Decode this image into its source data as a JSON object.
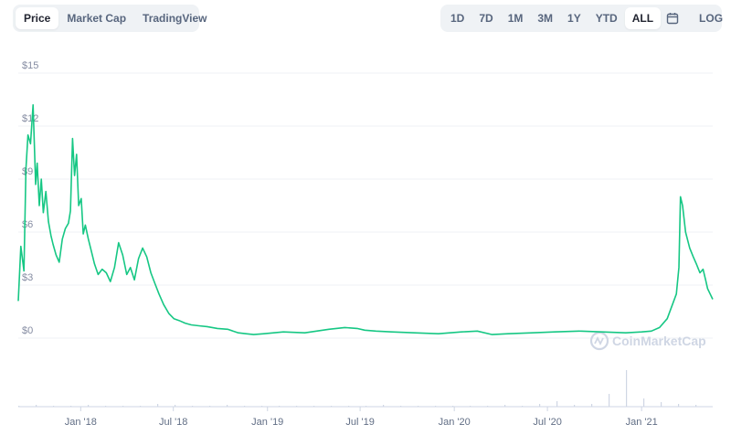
{
  "tabs": {
    "left": [
      {
        "label": "Price",
        "active": true
      },
      {
        "label": "Market Cap",
        "active": false
      },
      {
        "label": "TradingView",
        "active": false
      }
    ],
    "ranges": [
      {
        "label": "1D",
        "active": false
      },
      {
        "label": "7D",
        "active": false
      },
      {
        "label": "1M",
        "active": false
      },
      {
        "label": "3M",
        "active": false
      },
      {
        "label": "1Y",
        "active": false
      },
      {
        "label": "YTD",
        "active": false
      },
      {
        "label": "ALL",
        "active": true
      }
    ],
    "calendar_icon": "calendar-icon",
    "log_label": "LOG"
  },
  "watermark": {
    "text": "CoinMarketCap"
  },
  "colors": {
    "line": "#16c784",
    "grid": "#eff2f5",
    "volume": "#cfd6e4"
  },
  "chart_data": {
    "type": "line",
    "xlabel": "",
    "ylabel": "",
    "ylim": [
      0,
      15
    ],
    "yticks": [
      {
        "value": 0,
        "label": "$0"
      },
      {
        "value": 3,
        "label": "$3"
      },
      {
        "value": 6,
        "label": "$6"
      },
      {
        "value": 9,
        "label": "$9"
      },
      {
        "value": 12,
        "label": "$12"
      },
      {
        "value": 15,
        "label": "$15"
      }
    ],
    "xticks": [
      {
        "date": "2018-01-01",
        "label": "Jan '18"
      },
      {
        "date": "2018-07-01",
        "label": "Jul '18"
      },
      {
        "date": "2019-01-01",
        "label": "Jan '19"
      },
      {
        "date": "2019-07-01",
        "label": "Jul '19"
      },
      {
        "date": "2020-01-01",
        "label": "Jan '20"
      },
      {
        "date": "2020-07-01",
        "label": "Jul '20"
      },
      {
        "date": "2021-01-01",
        "label": "Jan '21"
      }
    ],
    "xlim": [
      "2017-09-01",
      "2021-05-20"
    ],
    "series": [
      {
        "x": [
          "2017-09-01",
          "2017-09-06",
          "2017-09-12",
          "2017-09-16",
          "2017-09-20",
          "2017-09-25",
          "2017-09-30",
          "2017-10-05",
          "2017-10-08",
          "2017-10-12",
          "2017-10-16",
          "2017-10-20",
          "2017-10-25",
          "2017-10-30",
          "2017-11-04",
          "2017-11-08",
          "2017-11-14",
          "2017-11-20",
          "2017-11-26",
          "2017-12-02",
          "2017-12-08",
          "2017-12-12",
          "2017-12-16",
          "2017-12-20",
          "2017-12-24",
          "2017-12-28",
          "2018-01-02",
          "2018-01-06",
          "2018-01-10",
          "2018-01-16",
          "2018-01-22",
          "2018-01-28",
          "2018-02-04",
          "2018-02-12",
          "2018-02-20",
          "2018-02-28",
          "2018-03-08",
          "2018-03-16",
          "2018-03-24",
          "2018-04-01",
          "2018-04-08",
          "2018-04-16",
          "2018-04-24",
          "2018-05-02",
          "2018-05-10",
          "2018-05-18",
          "2018-05-26",
          "2018-06-03",
          "2018-06-12",
          "2018-06-22",
          "2018-07-02",
          "2018-07-12",
          "2018-07-24",
          "2018-08-05",
          "2018-08-20",
          "2018-09-05",
          "2018-09-25",
          "2018-10-15",
          "2018-11-05",
          "2018-11-20",
          "2018-12-05",
          "2018-12-25",
          "2019-02-01",
          "2019-03-15",
          "2019-05-01",
          "2019-06-01",
          "2019-06-25",
          "2019-07-10",
          "2019-08-01",
          "2019-09-01",
          "2019-10-15",
          "2019-12-01",
          "2020-01-15",
          "2020-02-15",
          "2020-03-15",
          "2020-04-15",
          "2020-06-01",
          "2020-07-15",
          "2020-09-01",
          "2020-10-15",
          "2020-12-01",
          "2021-01-01",
          "2021-01-20",
          "2021-02-05",
          "2021-02-20",
          "2021-03-01",
          "2021-03-10",
          "2021-03-15",
          "2021-03-18",
          "2021-03-22",
          "2021-03-28",
          "2021-04-05",
          "2021-04-12",
          "2021-04-18",
          "2021-04-25",
          "2021-05-01",
          "2021-05-06",
          "2021-05-10",
          "2021-05-15",
          "2021-05-20"
        ],
        "y": [
          2.1,
          5.2,
          3.8,
          9.6,
          11.5,
          11.0,
          13.2,
          8.7,
          9.9,
          7.5,
          9.0,
          7.1,
          8.3,
          6.6,
          5.8,
          5.3,
          4.7,
          4.3,
          5.6,
          6.2,
          6.5,
          7.2,
          11.3,
          9.2,
          10.4,
          7.5,
          7.9,
          5.9,
          6.4,
          5.6,
          4.9,
          4.2,
          3.6,
          3.9,
          3.7,
          3.2,
          4.0,
          5.4,
          4.7,
          3.6,
          4.0,
          3.3,
          4.5,
          5.1,
          4.6,
          3.7,
          3.1,
          2.5,
          1.9,
          1.4,
          1.1,
          1.0,
          0.85,
          0.75,
          0.7,
          0.65,
          0.55,
          0.5,
          0.3,
          0.25,
          0.2,
          0.25,
          0.35,
          0.3,
          0.5,
          0.6,
          0.55,
          0.45,
          0.4,
          0.35,
          0.3,
          0.25,
          0.35,
          0.4,
          0.2,
          0.25,
          0.3,
          0.35,
          0.4,
          0.35,
          0.3,
          0.35,
          0.4,
          0.6,
          1.1,
          1.8,
          2.5,
          4.0,
          8.0,
          7.5,
          6.0,
          5.1,
          4.6,
          4.2,
          3.7,
          3.9,
          3.3,
          2.8,
          2.5,
          2.2
        ]
      }
    ]
  }
}
